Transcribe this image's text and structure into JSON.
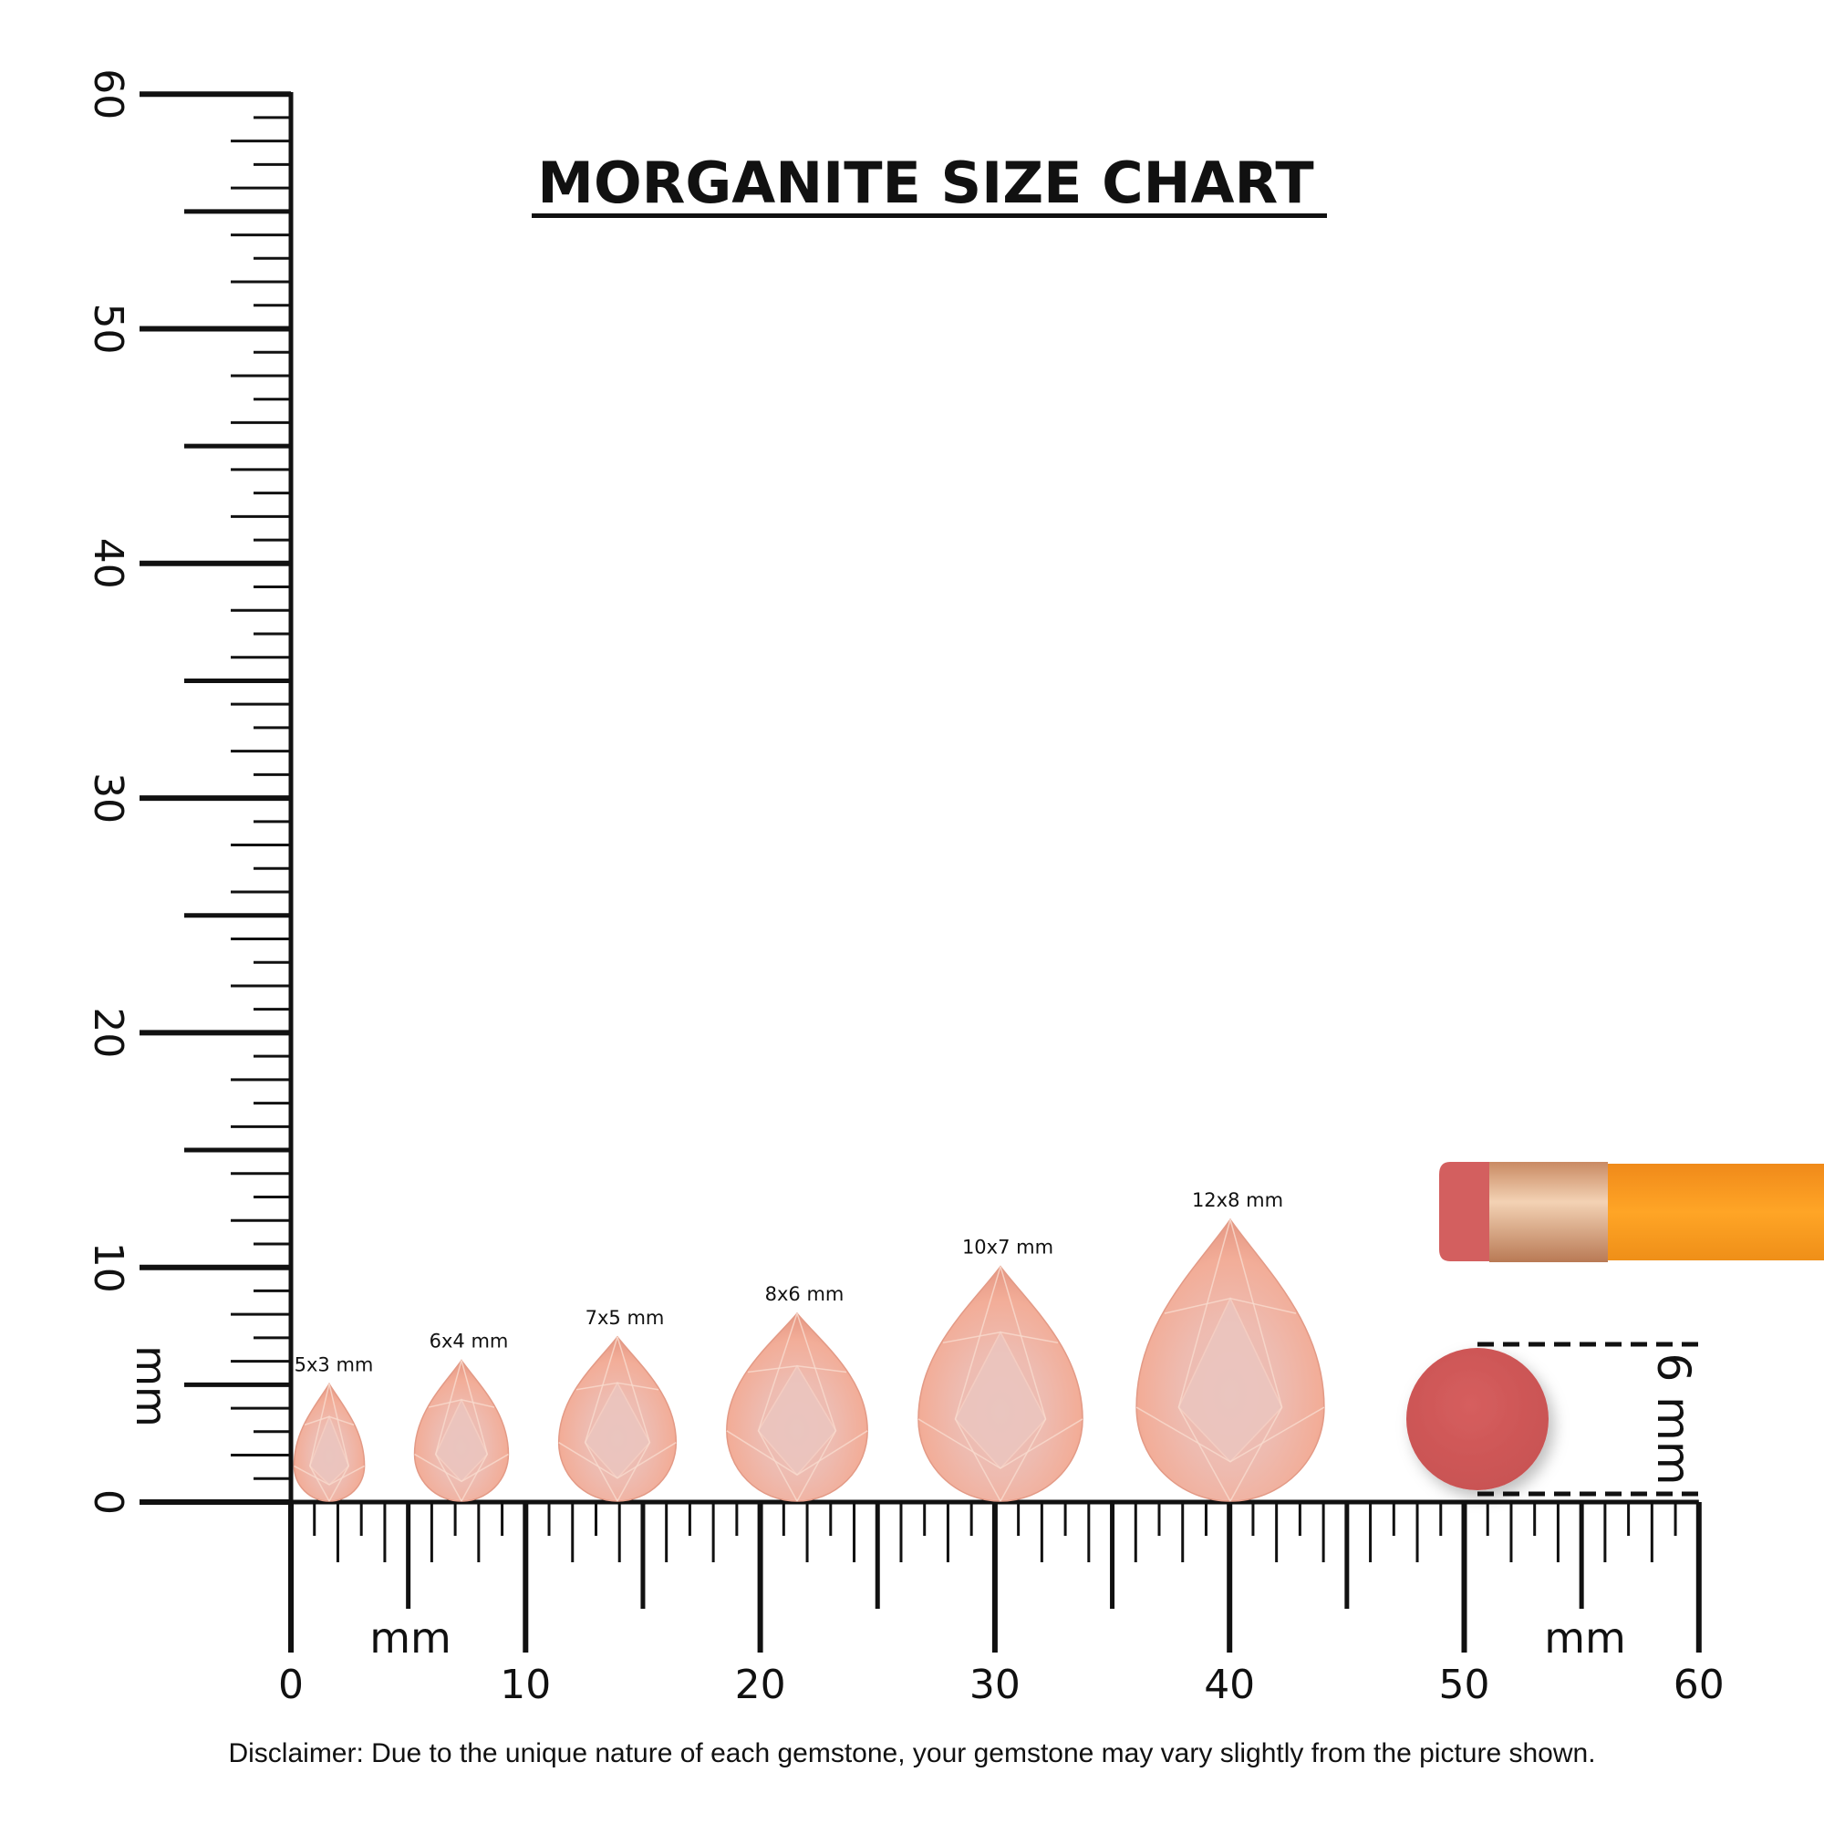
{
  "title": "MORGANITE SIZE CHART",
  "disclaimer": "Disclaimer: Due to the unique nature of each gemstone, your gemstone may vary slightly from the picture shown.",
  "ruler": {
    "unit_label": "mm",
    "range_mm": [
      0,
      60
    ],
    "horizontal_tick_labels": [
      "0",
      "10",
      "20",
      "30",
      "40",
      "50",
      "60"
    ],
    "vertical_tick_labels": [
      "0",
      "10",
      "20",
      "30",
      "40",
      "50",
      "60"
    ]
  },
  "gems": [
    {
      "label": "5x3 mm",
      "length_mm": 5,
      "width_mm": 3
    },
    {
      "label": "6x4 mm",
      "length_mm": 6,
      "width_mm": 4
    },
    {
      "label": "7x5 mm",
      "length_mm": 7,
      "width_mm": 5
    },
    {
      "label": "8x6 mm",
      "length_mm": 8,
      "width_mm": 6
    },
    {
      "label": "10x7 mm",
      "length_mm": 10,
      "width_mm": 7
    },
    {
      "label": "12x8 mm",
      "length_mm": 12,
      "width_mm": 8
    }
  ],
  "reference": {
    "label": "6 mm",
    "object": "pencil eraser",
    "diameter_mm": 6
  },
  "colors": {
    "gem": "#f0b3a3",
    "gem_center": "#e9bfb8",
    "eraser": "#d05a5a",
    "pencil": "#f7941d",
    "ferrule": "#d9a27c",
    "ink": "#111111"
  }
}
